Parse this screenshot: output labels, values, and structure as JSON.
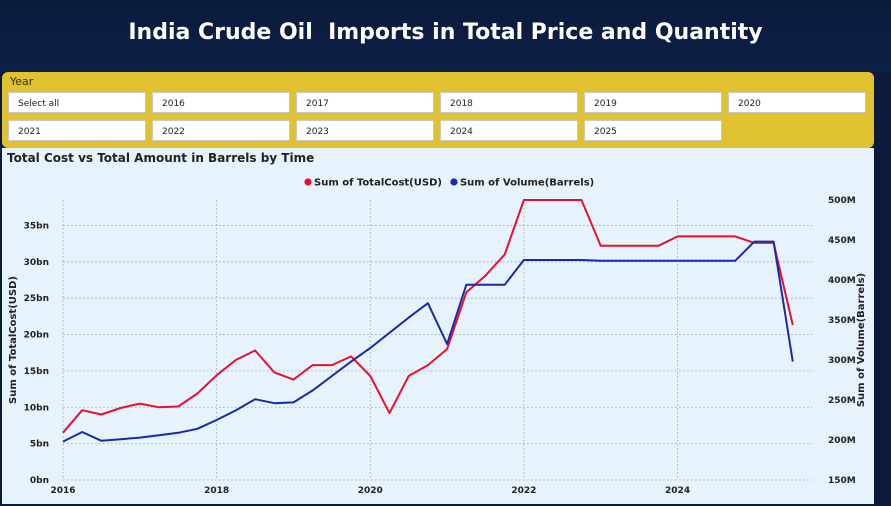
{
  "title": "India Crude Oil  Imports in Total Price and Quantity",
  "slicer": {
    "label": "Year",
    "options": [
      "Select all",
      "2016",
      "2017",
      "2018",
      "2019",
      "2020",
      "2021",
      "2022",
      "2023",
      "2024",
      "2025"
    ]
  },
  "chart_data": {
    "type": "line",
    "title": "Total Cost vs Total Amount in Barrels by Time",
    "legend_position": "top-center",
    "grid": true,
    "x_ticks": [
      "2016",
      "2018",
      "2020",
      "2022",
      "2024"
    ],
    "x_range": [
      2016,
      2025.75
    ],
    "y_left": {
      "label": "Sum of TotalCost(USD)",
      "range": [
        0,
        38.5
      ],
      "unit": "bn",
      "ticks": [
        "0bn",
        "5bn",
        "10bn",
        "15bn",
        "20bn",
        "25bn",
        "30bn",
        "35bn"
      ]
    },
    "y_right": {
      "label": "Sum of Volume(Barrels)",
      "range": [
        150,
        500
      ],
      "unit": "M",
      "ticks": [
        "150M",
        "200M",
        "250M",
        "300M",
        "350M",
        "400M",
        "450M",
        "500M"
      ]
    },
    "series": [
      {
        "name": "Sum of TotalCost(USD)",
        "color": "#e8102e",
        "axis": "left",
        "x": [
          2016.0,
          2016.25,
          2016.5,
          2016.75,
          2017.0,
          2017.25,
          2017.5,
          2017.75,
          2018.0,
          2018.25,
          2018.5,
          2018.75,
          2019.0,
          2019.25,
          2019.5,
          2019.75,
          2020.0,
          2020.25,
          2020.5,
          2020.75,
          2021.0,
          2021.25,
          2021.5,
          2021.75,
          2022.0,
          2022.25,
          2022.5,
          2022.75,
          2023.0,
          2023.25,
          2023.5,
          2023.75,
          2024.0,
          2024.25,
          2024.5,
          2024.75,
          2025.0,
          2025.25,
          2025.5
        ],
        "y": [
          6.5,
          9.6,
          9.0,
          9.9,
          10.5,
          10.0,
          10.1,
          11.9,
          14.4,
          16.5,
          17.8,
          14.8,
          13.8,
          15.8,
          15.8,
          17.0,
          14.3,
          9.2,
          14.3,
          15.8,
          18.0,
          25.8,
          28.1,
          31.0,
          38.5,
          38.5,
          38.5,
          38.5,
          32.2,
          32.2,
          32.2,
          32.2,
          33.5,
          33.5,
          33.5,
          33.5,
          32.6,
          32.6,
          21.3
        ]
      },
      {
        "name": "Sum of Volume(Barrels)",
        "color": "#1a2aa6",
        "axis": "right",
        "x": [
          2016.0,
          2016.25,
          2016.5,
          2016.75,
          2017.0,
          2017.25,
          2017.5,
          2017.75,
          2018.0,
          2018.25,
          2018.5,
          2018.75,
          2019.0,
          2019.25,
          2019.5,
          2019.75,
          2020.0,
          2020.25,
          2020.5,
          2020.75,
          2021.0,
          2021.25,
          2021.5,
          2021.75,
          2022.0,
          2022.25,
          2022.5,
          2022.75,
          2023.0,
          2023.25,
          2023.5,
          2023.75,
          2024.0,
          2024.25,
          2024.5,
          2024.75,
          2025.0,
          2025.25,
          2025.5
        ],
        "y": [
          198,
          210,
          199,
          201,
          203,
          206,
          209,
          214,
          225,
          237,
          251,
          246,
          247,
          262,
          280,
          298,
          315,
          334,
          353,
          371,
          320,
          394,
          394,
          394,
          425,
          425,
          425,
          425,
          424,
          424,
          424,
          424,
          424,
          424,
          424,
          424,
          448,
          448,
          298
        ]
      }
    ]
  }
}
